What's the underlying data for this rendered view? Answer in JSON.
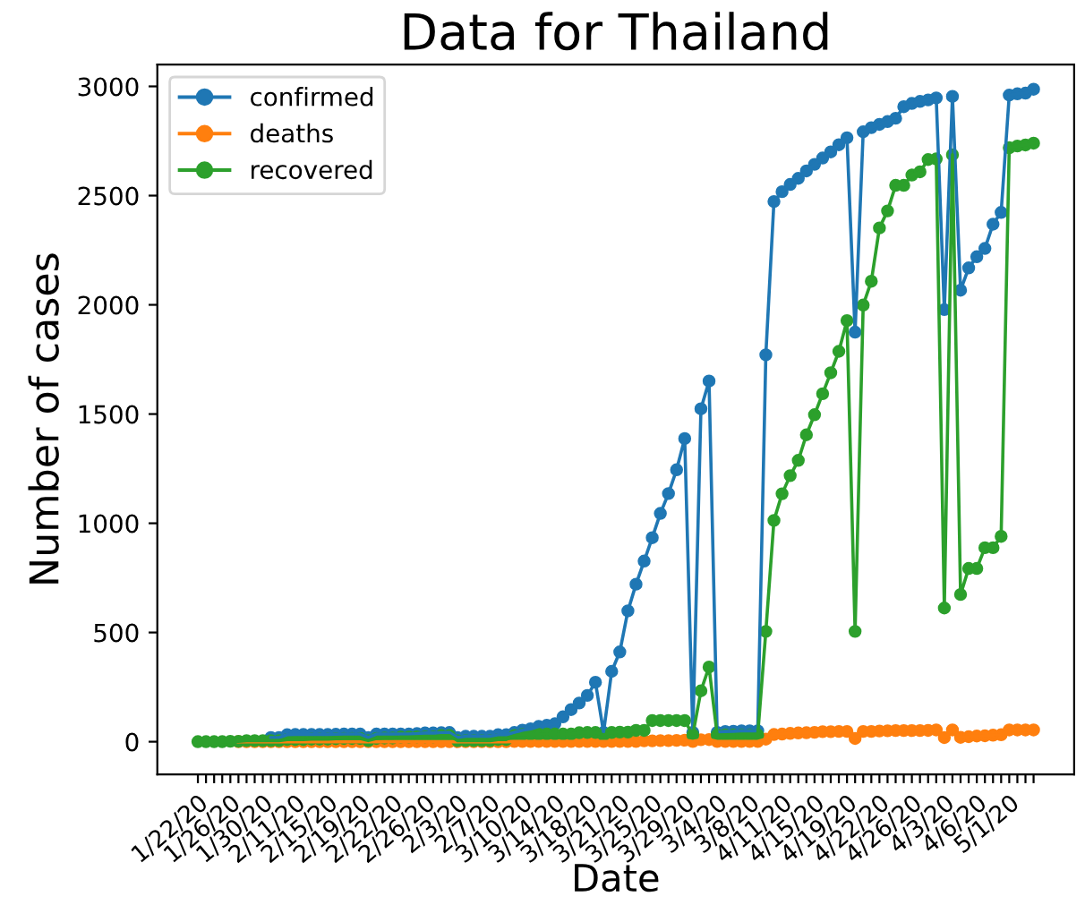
{
  "chart_data": {
    "type": "line",
    "title": "Data for Thailand",
    "xlabel": "Date",
    "ylabel": "Number of cases",
    "categories": [
      "1/22/20",
      null,
      null,
      null,
      "1/26/20",
      null,
      null,
      null,
      "1/30/20",
      null,
      null,
      null,
      "2/11/20",
      null,
      null,
      null,
      "2/15/20",
      null,
      null,
      null,
      "2/19/20",
      null,
      null,
      null,
      "2/22/20",
      null,
      null,
      null,
      "2/26/20",
      null,
      null,
      null,
      "2/3/20",
      null,
      null,
      null,
      "2/7/20",
      null,
      null,
      null,
      "3/10/20",
      null,
      null,
      null,
      "3/14/20",
      null,
      null,
      null,
      "3/18/20",
      null,
      null,
      null,
      "3/21/20",
      null,
      null,
      null,
      "3/25/20",
      null,
      null,
      null,
      "3/29/20",
      null,
      null,
      null,
      "3/4/20",
      null,
      null,
      null,
      "3/8/20",
      null,
      null,
      null,
      "4/11/20",
      null,
      null,
      null,
      "4/15/20",
      null,
      null,
      null,
      "4/19/20",
      null,
      null,
      null,
      "4/22/20",
      null,
      null,
      null,
      "4/26/20",
      null,
      null,
      null,
      "4/3/20",
      null,
      null,
      null,
      "4/6/20",
      null,
      null,
      null,
      "5/1/20",
      null,
      null,
      null
    ],
    "series": [
      {
        "name": "confirmed",
        "color": "#1f77b4",
        "values": [
          null,
          null,
          null,
          null,
          null,
          null,
          null,
          null,
          null,
          19,
          19,
          32,
          33,
          33,
          33,
          33,
          33,
          34,
          35,
          35,
          35,
          19,
          35,
          35,
          35,
          35,
          35,
          37,
          40,
          40,
          41,
          42,
          19,
          25,
          25,
          25,
          25,
          32,
          32,
          42,
          53,
          59,
          70,
          75,
          82,
          114,
          147,
          177,
          212,
          272,
          43,
          322,
          411,
          599,
          721,
          827,
          934,
          1045,
          1136,
          1245,
          1388,
          43,
          1524,
          1651,
          43,
          47,
          48,
          50,
          50,
          50,
          1771,
          2473,
          2518,
          2551,
          2579,
          2613,
          2643,
          2672,
          2700,
          2733,
          2765,
          1875,
          2792,
          2811,
          2826,
          2839,
          2854,
          2907,
          2922,
          2931,
          2938,
          2947,
          1978,
          2954,
          2067,
          2169,
          2220,
          2258,
          2369,
          2423,
          2960,
          2966,
          2969,
          2987
        ]
      },
      {
        "name": "deaths",
        "color": "#ff7f0e",
        "values": [
          null,
          null,
          null,
          null,
          null,
          0,
          0,
          0,
          0,
          0,
          0,
          0,
          0,
          0,
          0,
          0,
          0,
          0,
          0,
          0,
          0,
          0,
          0,
          0,
          0,
          0,
          0,
          0,
          0,
          0,
          0,
          0,
          0,
          0,
          0,
          0,
          0,
          0,
          0,
          1,
          1,
          1,
          1,
          1,
          1,
          1,
          1,
          1,
          1,
          1,
          1,
          1,
          1,
          1,
          1,
          4,
          4,
          5,
          5,
          6,
          7,
          1,
          9,
          10,
          1,
          1,
          1,
          1,
          1,
          1,
          12,
          33,
          35,
          38,
          40,
          41,
          43,
          46,
          46,
          47,
          47,
          15,
          47,
          47,
          49,
          50,
          51,
          51,
          51,
          51,
          52,
          54,
          19,
          54,
          20,
          23,
          26,
          27,
          30,
          32,
          54,
          54,
          54,
          54
        ]
      },
      {
        "name": "recovered",
        "color": "#2ca02c",
        "values": [
          0,
          0,
          0,
          0,
          2,
          2,
          5,
          5,
          5,
          5,
          5,
          10,
          10,
          10,
          12,
          12,
          12,
          14,
          15,
          15,
          15,
          5,
          15,
          17,
          17,
          21,
          21,
          22,
          22,
          22,
          28,
          28,
          5,
          5,
          5,
          5,
          5,
          10,
          10,
          28,
          33,
          34,
          34,
          35,
          35,
          35,
          35,
          41,
          42,
          42,
          31,
          42,
          44,
          44,
          52,
          52,
          97,
          97,
          97,
          97,
          97,
          31,
          233,
          342,
          31,
          31,
          31,
          31,
          31,
          31,
          505,
          1013,
          1135,
          1218,
          1288,
          1405,
          1497,
          1593,
          1689,
          1787,
          1928,
          505,
          1999,
          2108,
          2352,
          2430,
          2547,
          2547,
          2594,
          2609,
          2665,
          2668,
          612,
          2687,
          674,
          793,
          793,
          888,
          888,
          940,
          2719,
          2727,
          2732,
          2740
        ]
      }
    ],
    "ylim": [
      -150,
      3100
    ],
    "yticks": [
      0,
      500,
      1000,
      1500,
      2000,
      2500,
      3000
    ],
    "marker": "circle",
    "line_style": "solid",
    "legend": "top left",
    "grid": false
  }
}
